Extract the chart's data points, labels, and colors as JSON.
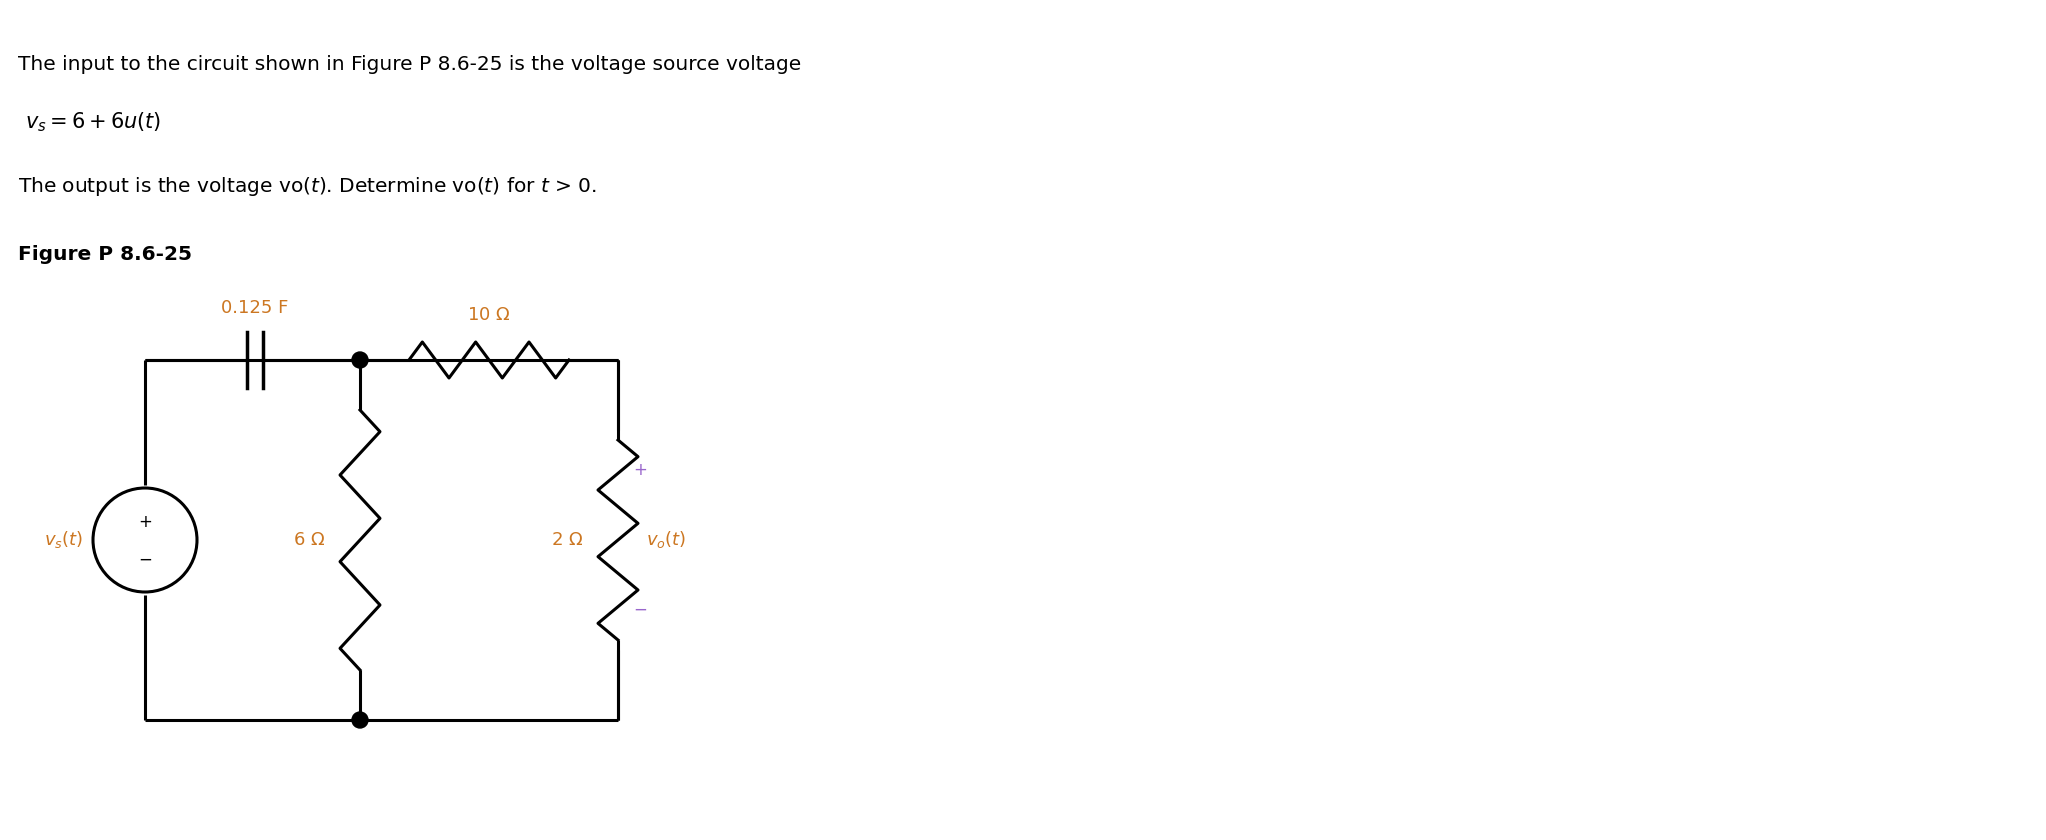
{
  "bg_color": "#ffffff",
  "title_line1": "The input to the circuit shown in Figure P 8.6-25 is the voltage source voltage",
  "text_color": "#000000",
  "orange": "#cc7722",
  "purple": "#9966cc",
  "circuit_color": "#000000",
  "figsize": [
    20.46,
    8.4
  ],
  "dpi": 100
}
